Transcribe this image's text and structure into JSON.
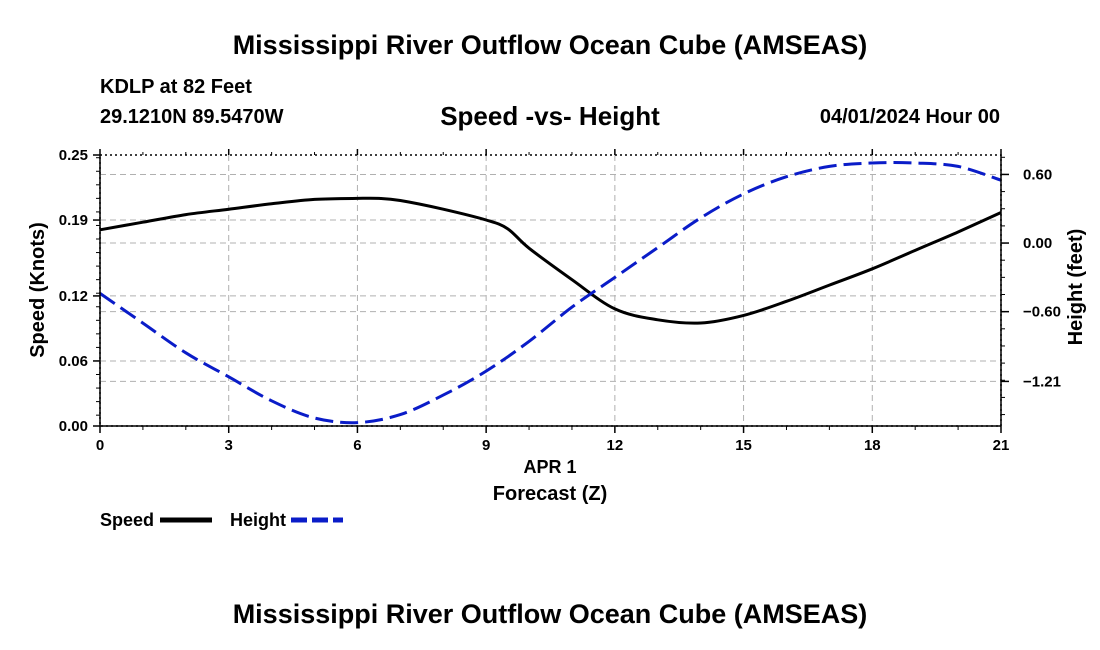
{
  "header": {
    "main_title": "Mississippi River Outflow Ocean Cube (AMSEAS)",
    "station": "KDLP at 82 Feet",
    "coordinates": "29.1210N  89.5470W",
    "subtitle": "Speed -vs- Height",
    "datetime": "04/01/2024 Hour 00"
  },
  "footer": {
    "title": "Mississippi River Outflow Ocean Cube (AMSEAS)"
  },
  "chart_data": {
    "type": "line",
    "title": "Speed -vs- Height",
    "xlabel": "Forecast (Z)",
    "xdate_label": "APR 1",
    "ylabel_left": "Speed (Knots)",
    "ylabel_right": "Height (feet)",
    "xlim": [
      0,
      21
    ],
    "ylim_left": [
      0.0,
      0.25
    ],
    "ylim_right": [
      -1.6,
      0.77
    ],
    "x_ticks": [
      0,
      3,
      6,
      9,
      12,
      15,
      18,
      21
    ],
    "x_tick_labels": [
      "0",
      "3",
      "6",
      "9",
      "12",
      "15",
      "18",
      "21"
    ],
    "y_left_ticks": [
      0.0,
      0.06,
      0.12,
      0.19,
      0.25
    ],
    "y_left_tick_labels": [
      "0.00",
      "0.06",
      "0.12",
      "0.19",
      "0.25"
    ],
    "y_right_ticks": [
      0.6,
      0.0,
      -0.6,
      -1.21
    ],
    "y_right_tick_labels": [
      "0.60",
      "0.00",
      "−0.60",
      "−1.21"
    ],
    "grid": true,
    "legend_placement": "bottom-left",
    "series": [
      {
        "name": "Speed",
        "axis": "left",
        "color": "#000000",
        "dash": "solid",
        "x": [
          0,
          1,
          2,
          3,
          4,
          5,
          6,
          6.5,
          7,
          8,
          9,
          9.5,
          10,
          11,
          12,
          13,
          14,
          15,
          16,
          17,
          18,
          19,
          20,
          21
        ],
        "values": [
          0.181,
          0.188,
          0.195,
          0.2,
          0.205,
          0.209,
          0.21,
          0.21,
          0.208,
          0.2,
          0.19,
          0.182,
          0.164,
          0.135,
          0.108,
          0.098,
          0.095,
          0.102,
          0.115,
          0.13,
          0.145,
          0.162,
          0.179,
          0.197
        ]
      },
      {
        "name": "Height",
        "axis": "right",
        "color": "#0a1cc8",
        "dash": "dashed",
        "x": [
          0,
          1,
          2,
          3,
          4,
          5,
          6,
          7,
          8,
          9,
          10,
          11,
          12,
          13,
          14,
          15,
          16,
          17,
          18,
          19,
          20,
          21
        ],
        "values": [
          -0.44,
          -0.7,
          -0.96,
          -1.17,
          -1.38,
          -1.53,
          -1.57,
          -1.5,
          -1.33,
          -1.12,
          -0.86,
          -0.56,
          -0.3,
          -0.04,
          0.22,
          0.43,
          0.58,
          0.67,
          0.7,
          0.7,
          0.67,
          0.55
        ]
      }
    ]
  }
}
